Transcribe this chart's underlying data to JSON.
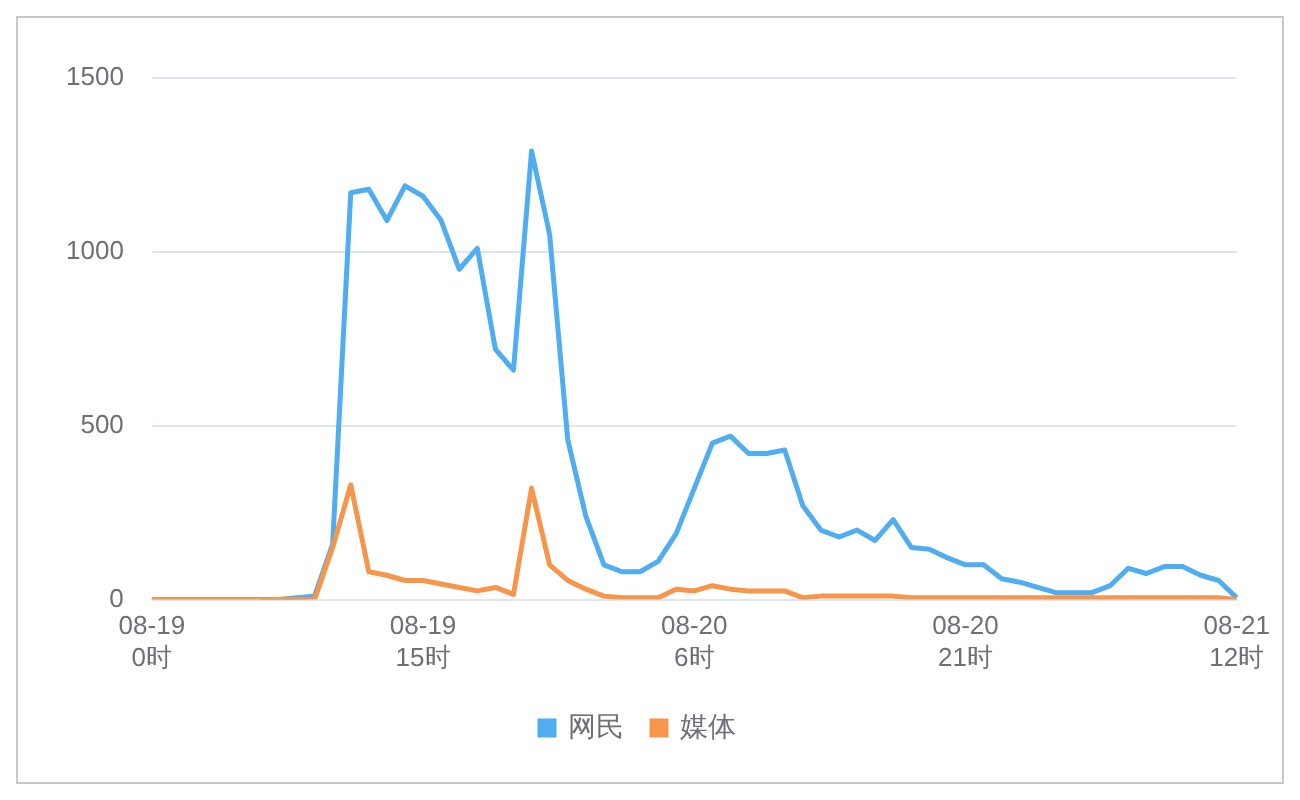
{
  "chart_data": {
    "type": "line",
    "categories": [
      "08-19\n0时",
      null,
      null,
      null,
      null,
      null,
      null,
      null,
      null,
      null,
      null,
      null,
      null,
      null,
      null,
      "08-19\n15时",
      null,
      null,
      null,
      null,
      null,
      null,
      null,
      null,
      null,
      null,
      null,
      null,
      null,
      null,
      "08-20\n6时",
      null,
      null,
      null,
      null,
      null,
      null,
      null,
      null,
      null,
      null,
      null,
      null,
      null,
      null,
      "08-20\n21时",
      null,
      null,
      null,
      null,
      null,
      null,
      null,
      null,
      null,
      null,
      null,
      null,
      null,
      null,
      "08-21\n12时"
    ],
    "series": [
      {
        "name": "网民",
        "color": "#4fadf0",
        "values": [
          null,
          null,
          null,
          null,
          null,
          null,
          0,
          0,
          5,
          10,
          160,
          1170,
          1180,
          1090,
          1190,
          1160,
          1090,
          950,
          1010,
          720,
          660,
          1290,
          1050,
          460,
          240,
          100,
          80,
          80,
          110,
          190,
          320,
          450,
          470,
          420,
          420,
          430,
          270,
          200,
          180,
          200,
          170,
          230,
          150,
          145,
          120,
          100,
          100,
          60,
          50,
          35,
          20,
          20,
          20,
          40,
          90,
          75,
          95,
          95,
          70,
          55,
          5
        ]
      },
      {
        "name": "媒体",
        "color": "#f7954a",
        "values": [
          0,
          0,
          0,
          0,
          0,
          0,
          0,
          0,
          0,
          0,
          150,
          330,
          80,
          70,
          55,
          55,
          45,
          35,
          25,
          35,
          15,
          320,
          100,
          55,
          30,
          10,
          5,
          5,
          5,
          30,
          25,
          40,
          30,
          25,
          25,
          25,
          5,
          10,
          10,
          10,
          10,
          10,
          5,
          5,
          5,
          5,
          5,
          5,
          5,
          5,
          5,
          5,
          5,
          5,
          5,
          5,
          5,
          5,
          5,
          5,
          0
        ]
      }
    ],
    "ylim": [
      0,
      1500
    ],
    "yticks": [
      0,
      500,
      1000,
      1500
    ],
    "grid": "y",
    "legend": "bottom",
    "marker": "none",
    "line_style": "solid"
  }
}
